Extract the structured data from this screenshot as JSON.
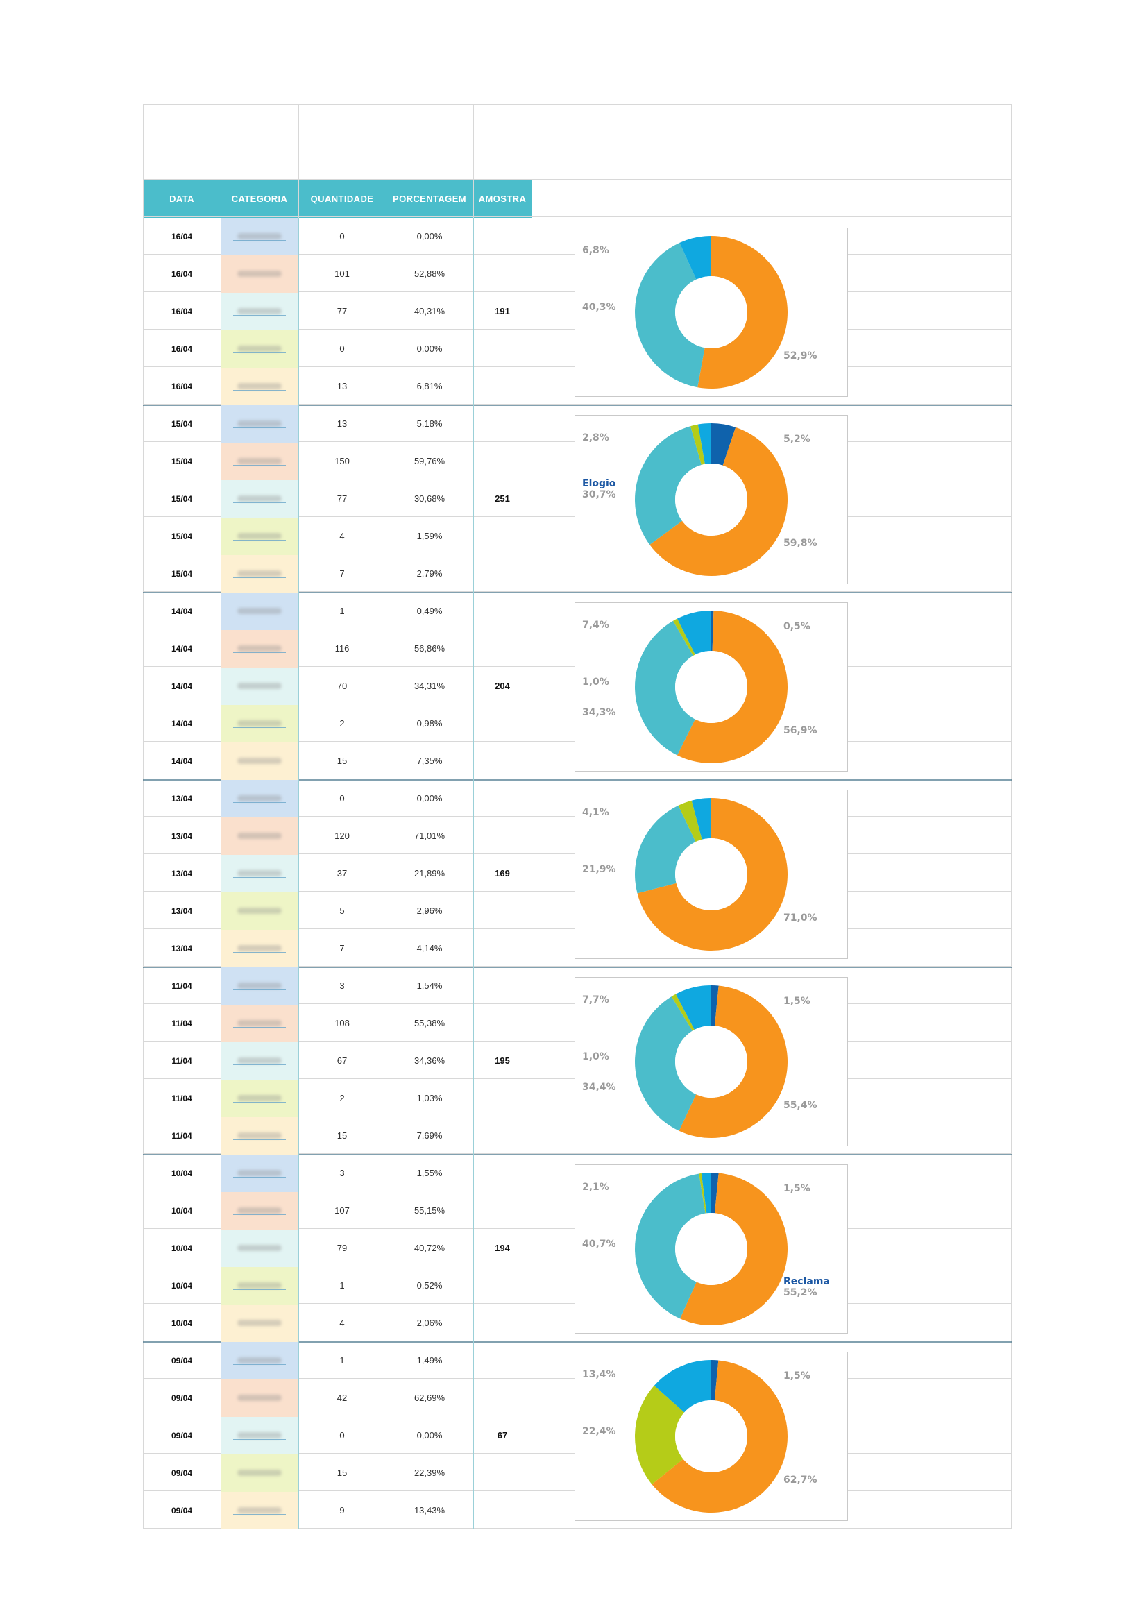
{
  "header": [
    "DATA",
    "CATEGORIA",
    "QUANTIDADE",
    "PORCENTAGEM",
    "AMOSTRA"
  ],
  "colors": {
    "header_bg": "#4bbdcb",
    "cat_fills": [
      "#cfe1f3",
      "#fae0cd",
      "#e2f4f3",
      "#eef5c6",
      "#fdf0d2"
    ],
    "slice_colors": [
      "#0f62ac",
      "#f7941d",
      "#4bbdcb",
      "#b5cc18",
      "#0fa8e0"
    ]
  },
  "groups": [
    {
      "amostra": "191",
      "rows": [
        {
          "date": "16/04",
          "qty": "0",
          "pct": "0,00%"
        },
        {
          "date": "16/04",
          "qty": "101",
          "pct": "52,88%"
        },
        {
          "date": "16/04",
          "qty": "77",
          "pct": "40,31%"
        },
        {
          "date": "16/04",
          "qty": "0",
          "pct": "0,00%"
        },
        {
          "date": "16/04",
          "qty": "13",
          "pct": "6,81%"
        }
      ],
      "chart_labels": [
        {
          "name": "",
          "value": "6,8%",
          "side": "top-left"
        },
        {
          "name": "",
          "value": "40,3%",
          "side": "left"
        },
        {
          "name": "",
          "value": "52,9%",
          "side": "right"
        }
      ]
    },
    {
      "amostra": "251",
      "rows": [
        {
          "date": "15/04",
          "qty": "13",
          "pct": "5,18%"
        },
        {
          "date": "15/04",
          "qty": "150",
          "pct": "59,76%"
        },
        {
          "date": "15/04",
          "qty": "77",
          "pct": "30,68%"
        },
        {
          "date": "15/04",
          "qty": "4",
          "pct": "1,59%"
        },
        {
          "date": "15/04",
          "qty": "7",
          "pct": "2,79%"
        }
      ],
      "chart_labels": [
        {
          "name": "",
          "value": "2,8%",
          "side": "top-left"
        },
        {
          "name": "Elogio",
          "value": "30,7%",
          "side": "left"
        },
        {
          "name": "",
          "value": "5,2%",
          "side": "top-right"
        },
        {
          "name": "",
          "value": "59,8%",
          "side": "right"
        }
      ]
    },
    {
      "amostra": "204",
      "rows": [
        {
          "date": "14/04",
          "qty": "1",
          "pct": "0,49%"
        },
        {
          "date": "14/04",
          "qty": "116",
          "pct": "56,86%"
        },
        {
          "date": "14/04",
          "qty": "70",
          "pct": "34,31%"
        },
        {
          "date": "14/04",
          "qty": "2",
          "pct": "0,98%"
        },
        {
          "date": "14/04",
          "qty": "15",
          "pct": "7,35%"
        }
      ],
      "chart_labels": [
        {
          "name": "",
          "value": "7,4%",
          "side": "top-left"
        },
        {
          "name": "",
          "value": "1,0%",
          "side": "left"
        },
        {
          "name": "",
          "value": "34,3%",
          "side": "left"
        },
        {
          "name": "",
          "value": "0,5%",
          "side": "top-right"
        },
        {
          "name": "",
          "value": "56,9%",
          "side": "right"
        }
      ]
    },
    {
      "amostra": "169",
      "rows": [
        {
          "date": "13/04",
          "qty": "0",
          "pct": "0,00%"
        },
        {
          "date": "13/04",
          "qty": "120",
          "pct": "71,01%"
        },
        {
          "date": "13/04",
          "qty": "37",
          "pct": "21,89%"
        },
        {
          "date": "13/04",
          "qty": "5",
          "pct": "2,96%"
        },
        {
          "date": "13/04",
          "qty": "7",
          "pct": "4,14%"
        }
      ],
      "chart_labels": [
        {
          "name": "",
          "value": "4,1%",
          "side": "top-left"
        },
        {
          "name": "",
          "value": "21,9%",
          "side": "left"
        },
        {
          "name": "",
          "value": "71,0%",
          "side": "right"
        }
      ]
    },
    {
      "amostra": "195",
      "rows": [
        {
          "date": "11/04",
          "qty": "3",
          "pct": "1,54%"
        },
        {
          "date": "11/04",
          "qty": "108",
          "pct": "55,38%"
        },
        {
          "date": "11/04",
          "qty": "67",
          "pct": "34,36%"
        },
        {
          "date": "11/04",
          "qty": "2",
          "pct": "1,03%"
        },
        {
          "date": "11/04",
          "qty": "15",
          "pct": "7,69%"
        }
      ],
      "chart_labels": [
        {
          "name": "",
          "value": "7,7%",
          "side": "top-left"
        },
        {
          "name": "",
          "value": "1,0%",
          "side": "left"
        },
        {
          "name": "",
          "value": "34,4%",
          "side": "left"
        },
        {
          "name": "",
          "value": "1,5%",
          "side": "top-right"
        },
        {
          "name": "",
          "value": "55,4%",
          "side": "right"
        }
      ]
    },
    {
      "amostra": "194",
      "rows": [
        {
          "date": "10/04",
          "qty": "3",
          "pct": "1,55%"
        },
        {
          "date": "10/04",
          "qty": "107",
          "pct": "55,15%"
        },
        {
          "date": "10/04",
          "qty": "79",
          "pct": "40,72%"
        },
        {
          "date": "10/04",
          "qty": "1",
          "pct": "0,52%"
        },
        {
          "date": "10/04",
          "qty": "4",
          "pct": "2,06%"
        }
      ],
      "chart_labels": [
        {
          "name": "",
          "value": "2,1%",
          "side": "top-left"
        },
        {
          "name": "",
          "value": "40,7%",
          "side": "left"
        },
        {
          "name": "",
          "value": "1,5%",
          "side": "top-right"
        },
        {
          "name": "Reclama",
          "value": "55,2%",
          "side": "right"
        }
      ]
    },
    {
      "amostra": "67",
      "rows": [
        {
          "date": "09/04",
          "qty": "1",
          "pct": "1,49%"
        },
        {
          "date": "09/04",
          "qty": "42",
          "pct": "62,69%"
        },
        {
          "date": "09/04",
          "qty": "0",
          "pct": "0,00%"
        },
        {
          "date": "09/04",
          "qty": "15",
          "pct": "22,39%"
        },
        {
          "date": "09/04",
          "qty": "9",
          "pct": "13,43%"
        }
      ],
      "chart_labels": [
        {
          "name": "",
          "value": "13,4%",
          "side": "top-left"
        },
        {
          "name": "",
          "value": "22,4%",
          "side": "left"
        },
        {
          "name": "",
          "value": "1,5%",
          "side": "top-right"
        },
        {
          "name": "",
          "value": "62,7%",
          "side": "right"
        }
      ]
    }
  ],
  "chart_data": [
    {
      "type": "pie",
      "variant": "donut",
      "values": [
        0,
        101,
        77,
        0,
        13
      ]
    },
    {
      "type": "pie",
      "variant": "donut",
      "values": [
        13,
        150,
        77,
        4,
        7
      ]
    },
    {
      "type": "pie",
      "variant": "donut",
      "values": [
        1,
        116,
        70,
        2,
        15
      ]
    },
    {
      "type": "pie",
      "variant": "donut",
      "values": [
        0,
        120,
        37,
        5,
        7
      ]
    },
    {
      "type": "pie",
      "variant": "donut",
      "values": [
        3,
        108,
        67,
        2,
        15
      ]
    },
    {
      "type": "pie",
      "variant": "donut",
      "values": [
        3,
        107,
        79,
        1,
        4
      ]
    },
    {
      "type": "pie",
      "variant": "donut",
      "values": [
        1,
        42,
        0,
        15,
        9
      ]
    }
  ]
}
